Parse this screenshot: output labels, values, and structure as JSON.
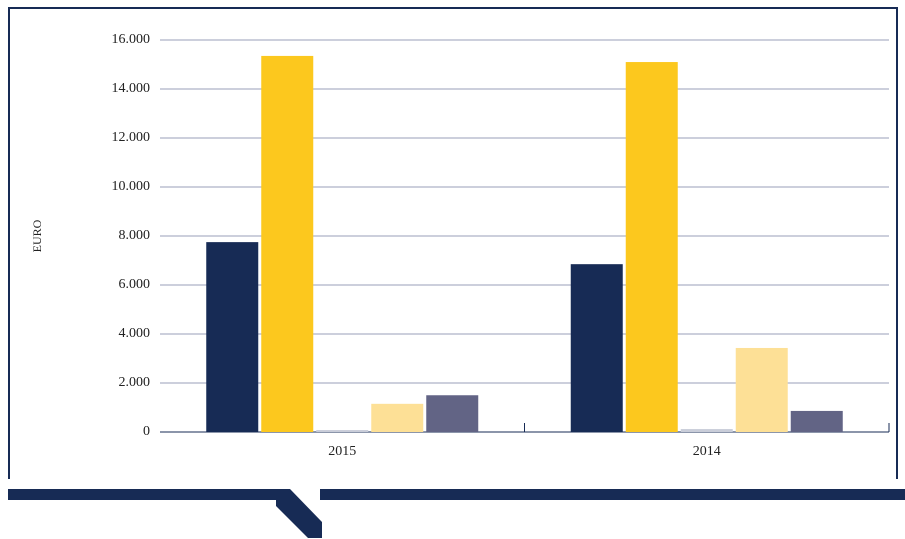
{
  "chart_data": {
    "type": "bar",
    "y_label": "EURO",
    "categories": [
      "2015",
      "2014"
    ],
    "series": [
      {
        "color": "#172b55",
        "values": [
          7750,
          6850
        ]
      },
      {
        "color": "#fcc81e",
        "values": [
          15350,
          15100
        ]
      },
      {
        "color": "#c9cdd9",
        "values": [
          80,
          120
        ]
      },
      {
        "color": "#fde096",
        "values": [
          1150,
          3430
        ]
      },
      {
        "color": "#626485",
        "values": [
          1500,
          860
        ]
      }
    ],
    "ylim": [
      0,
      16000
    ],
    "yticks": [
      0,
      {
        "value": 2000,
        "label": "2.000"
      },
      {
        "value": 4000,
        "label": "4.000"
      },
      {
        "value": 6000,
        "label": "6.000"
      },
      {
        "value": 8000,
        "label": "8.000"
      },
      {
        "value": 10000,
        "label": "10.000"
      },
      {
        "value": 12000,
        "label": "12.000"
      },
      {
        "value": 14000,
        "label": "14.000"
      },
      {
        "value": 16000,
        "label": "16.000"
      }
    ],
    "grid": true
  }
}
